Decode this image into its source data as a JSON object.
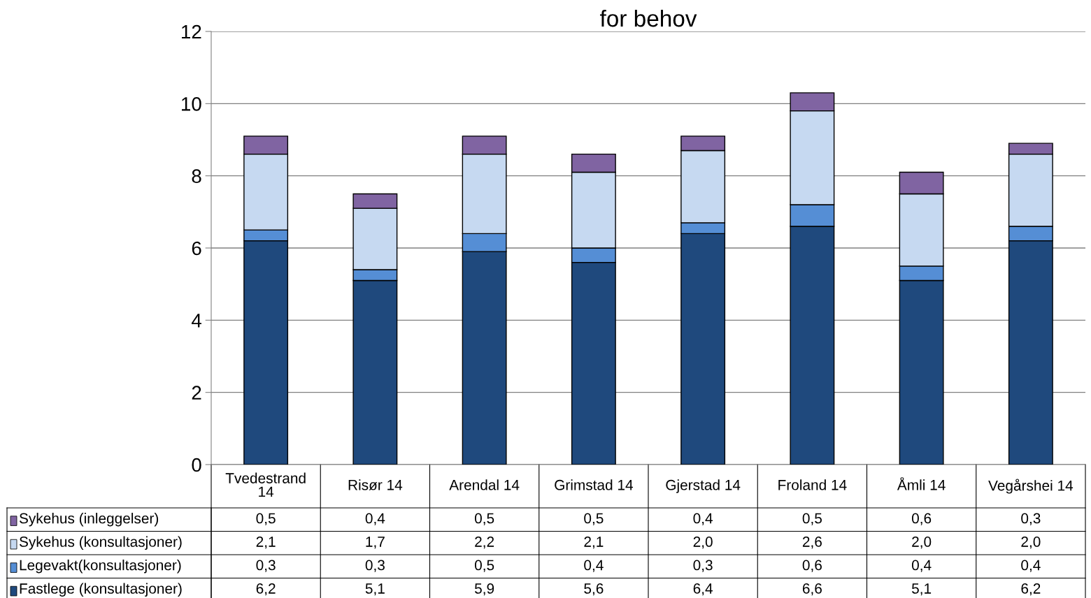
{
  "chart_data": {
    "type": "bar",
    "stacked": true,
    "title": "for behov",
    "categories": [
      "Tvedestrand\n14",
      "Risør 14",
      "Arendal 14",
      "Grimstad 14",
      "Gjerstad 14",
      "Froland 14",
      "Åmli 14",
      "Vegårshei 14"
    ],
    "series": [
      {
        "name": "Fastlege (konsultasjoner)",
        "color": "#1f497d",
        "values": [
          6.2,
          5.1,
          5.9,
          5.6,
          6.4,
          6.6,
          5.1,
          6.2
        ],
        "value_labels": [
          "6,2",
          "5,1",
          "5,9",
          "5,6",
          "6,4",
          "6,6",
          "5,1",
          "6,2"
        ]
      },
      {
        "name": "Legevakt(konsultasjoner)",
        "color": "#558ed5",
        "values": [
          0.3,
          0.3,
          0.5,
          0.4,
          0.3,
          0.6,
          0.4,
          0.4
        ],
        "value_labels": [
          "0,3",
          "0,3",
          "0,5",
          "0,4",
          "0,3",
          "0,6",
          "0,4",
          "0,4"
        ]
      },
      {
        "name": "Sykehus (konsultasjoner)",
        "color": "#c6d9f1",
        "values": [
          2.1,
          1.7,
          2.2,
          2.1,
          2.0,
          2.6,
          2.0,
          2.0
        ],
        "value_labels": [
          "2,1",
          "1,7",
          "2,2",
          "2,1",
          "2,0",
          "2,6",
          "2,0",
          "2,0"
        ]
      },
      {
        "name": "Sykehus (inleggelser)",
        "color": "#8064a2",
        "values": [
          0.5,
          0.4,
          0.5,
          0.5,
          0.4,
          0.5,
          0.6,
          0.3
        ],
        "value_labels": [
          "0,5",
          "0,4",
          "0,5",
          "0,5",
          "0,4",
          "0,5",
          "0,6",
          "0,3"
        ]
      }
    ],
    "ylim": [
      0,
      12
    ],
    "yticks": [
      0,
      2,
      4,
      6,
      8,
      10,
      12
    ],
    "grid": "y",
    "legend": "bottom left"
  }
}
